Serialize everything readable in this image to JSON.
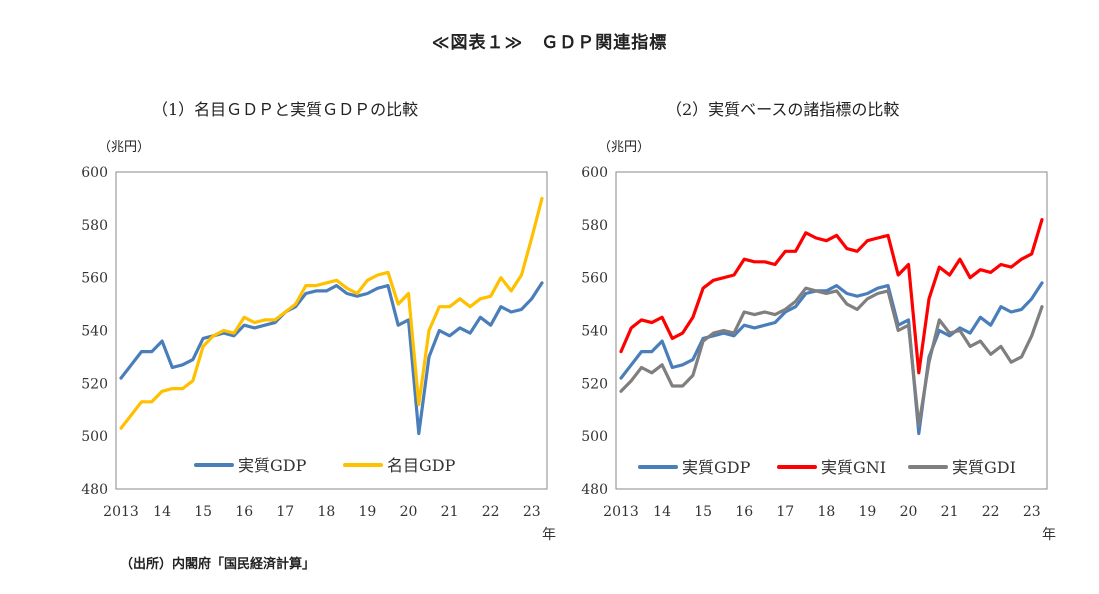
{
  "title": "≪図表１≫　ＧＤＰ関連指標",
  "source": "（出所）内閣府「国民経済計算」",
  "chart_data": [
    {
      "type": "line",
      "subtitle": "（1）名目ＧＤＰと実質ＧＤＰの比較",
      "unit": "（兆円）",
      "x_tick_labels": [
        "2013",
        "14",
        "15",
        "16",
        "17",
        "18",
        "19",
        "20",
        "21",
        "22",
        "23"
      ],
      "x_suffix": "年",
      "ylim": [
        480,
        600
      ],
      "y_ticks": [
        "480",
        "500",
        "520",
        "540",
        "560",
        "580",
        "600"
      ],
      "grid": false,
      "legend_position": "bottom-center",
      "series": [
        {
          "name": "実質GDP",
          "color": "#4A7EBB",
          "values": [
            522,
            527,
            532,
            532,
            536,
            526,
            527,
            529,
            537,
            538,
            539,
            538,
            542,
            541,
            542,
            543,
            547,
            549,
            554,
            555,
            555,
            557,
            554,
            553,
            554,
            556,
            557,
            542,
            544,
            501,
            530,
            540,
            538,
            541,
            539,
            545,
            542,
            549,
            547,
            548,
            552,
            558
          ]
        },
        {
          "name": "名目GDP",
          "color": "#FFC000",
          "values": [
            503,
            508,
            513,
            513,
            517,
            518,
            518,
            521,
            534,
            538,
            540,
            539,
            545,
            543,
            544,
            544,
            547,
            550,
            557,
            557,
            558,
            559,
            556,
            554,
            559,
            561,
            562,
            550,
            554,
            512,
            540,
            549,
            549,
            552,
            549,
            552,
            553,
            560,
            555,
            561,
            575,
            590
          ]
        }
      ]
    },
    {
      "type": "line",
      "subtitle": "（2）実質ベースの諸指標の比較",
      "unit": "（兆円）",
      "x_tick_labels": [
        "2013",
        "14",
        "15",
        "16",
        "17",
        "18",
        "19",
        "20",
        "21",
        "22",
        "23"
      ],
      "x_suffix": "年",
      "ylim": [
        480,
        600
      ],
      "y_ticks": [
        "480",
        "500",
        "520",
        "540",
        "560",
        "580",
        "600"
      ],
      "grid": false,
      "legend_position": "bottom-center",
      "series": [
        {
          "name": "実質GDP",
          "color": "#4A7EBB",
          "values": [
            522,
            527,
            532,
            532,
            536,
            526,
            527,
            529,
            537,
            538,
            539,
            538,
            542,
            541,
            542,
            543,
            547,
            549,
            554,
            555,
            555,
            557,
            554,
            553,
            554,
            556,
            557,
            542,
            544,
            501,
            530,
            540,
            538,
            541,
            539,
            545,
            542,
            549,
            547,
            548,
            552,
            558
          ]
        },
        {
          "name": "実質GNI",
          "color": "#FF0000",
          "values": [
            532,
            541,
            544,
            543,
            545,
            537,
            539,
            545,
            556,
            559,
            560,
            561,
            567,
            566,
            566,
            565,
            570,
            570,
            577,
            575,
            574,
            576,
            571,
            570,
            574,
            575,
            576,
            561,
            565,
            524,
            552,
            564,
            561,
            567,
            560,
            563,
            562,
            565,
            564,
            567,
            569,
            582
          ]
        },
        {
          "name": "実質GDI",
          "color": "#7F7F7F",
          "values": [
            517,
            521,
            526,
            524,
            527,
            519,
            519,
            523,
            536,
            539,
            540,
            539,
            547,
            546,
            547,
            546,
            548,
            551,
            556,
            555,
            554,
            555,
            550,
            548,
            552,
            554,
            555,
            540,
            542,
            504,
            528,
            544,
            539,
            540,
            534,
            536,
            531,
            534,
            528,
            530,
            538,
            549
          ]
        }
      ]
    }
  ]
}
